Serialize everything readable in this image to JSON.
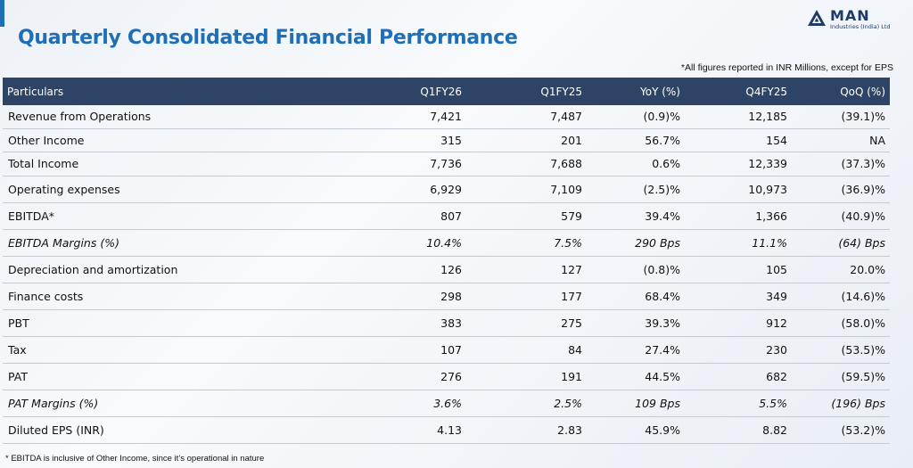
{
  "header": {
    "title": "Quarterly Consolidated Financial Performance",
    "logo_brand": "MAN",
    "logo_sub": "Industries (India) Ltd"
  },
  "note": "*All figures reported in INR Millions, except for EPS",
  "table": {
    "columns": [
      "Particulars",
      "Q1FY26",
      "Q1FY25",
      "YoY (%)",
      "Q4FY25",
      "QoQ (%)"
    ],
    "rows": [
      {
        "label": "Revenue from Operations",
        "cells": [
          "7,421",
          "7,487",
          "(0.9)%",
          "12,185",
          "(39.1)%"
        ]
      },
      {
        "label": "Other Income",
        "cells": [
          "315",
          "201",
          "56.7%",
          "154",
          "NA"
        ]
      },
      {
        "label": "Total Income",
        "cells": [
          "7,736",
          "7,688",
          "0.6%",
          "12,339",
          "(37.3)%"
        ]
      },
      {
        "label": "Operating expenses",
        "cells": [
          "6,929",
          "7,109",
          "(2.5)%",
          "10,973",
          "(36.9)%"
        ]
      },
      {
        "label": "EBITDA*",
        "cells": [
          "807",
          "579",
          "39.4%",
          "1,366",
          "(40.9)%"
        ]
      },
      {
        "label": "EBITDA Margins (%)",
        "cells": [
          "10.4%",
          "7.5%",
          "290 Bps",
          "11.1%",
          "(64) Bps"
        ]
      },
      {
        "label": "Depreciation and amortization",
        "cells": [
          "126",
          "127",
          "(0.8)%",
          "105",
          "20.0%"
        ]
      },
      {
        "label": "Finance costs",
        "cells": [
          "298",
          "177",
          "68.4%",
          "349",
          "(14.6)%"
        ]
      },
      {
        "label": "PBT",
        "cells": [
          "383",
          "275",
          "39.3%",
          "912",
          "(58.0)%"
        ]
      },
      {
        "label": "Tax",
        "cells": [
          "107",
          "84",
          "27.4%",
          "230",
          "(53.5)%"
        ]
      },
      {
        "label": "PAT",
        "cells": [
          "276",
          "191",
          "44.5%",
          "682",
          "(59.5)%"
        ]
      },
      {
        "label": "PAT Margins (%)",
        "cells": [
          "3.6%",
          "2.5%",
          "109 Bps",
          "5.5%",
          "(196) Bps"
        ]
      },
      {
        "label": "Diluted EPS (INR)",
        "cells": [
          "4.13",
          "2.83",
          "45.9%",
          "8.82",
          "(53.2)%"
        ]
      }
    ]
  },
  "footnote": "* EBITDA is inclusive of Other Income, since it’s operational in nature",
  "colors": {
    "title": "#1f6fb8",
    "header_bg": "#2d4467",
    "brand": "#1f3a66"
  }
}
